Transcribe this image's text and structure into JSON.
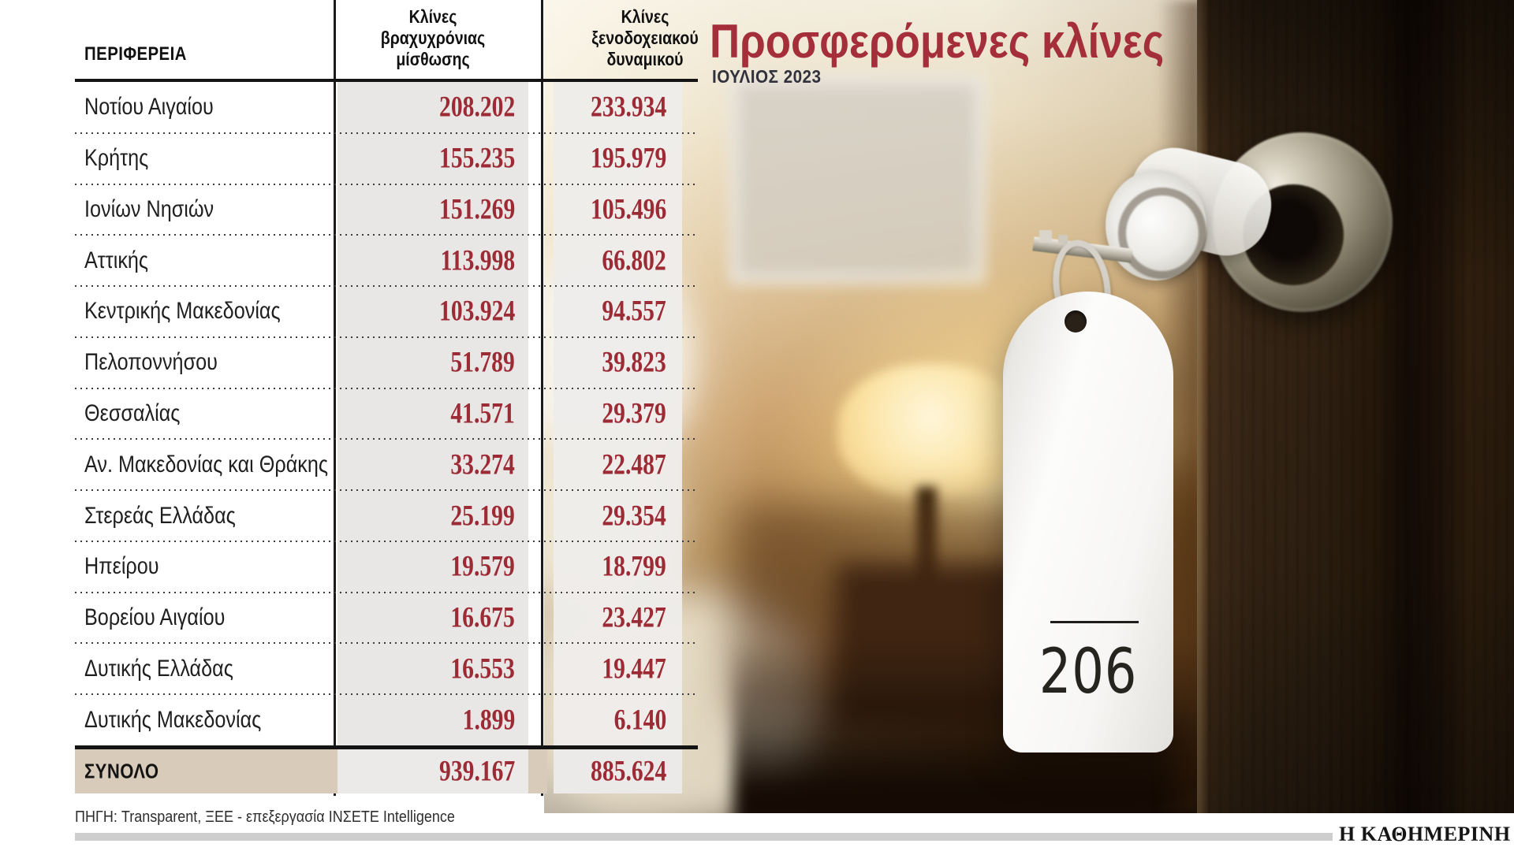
{
  "title": "Προσφερόμενες κλίνες",
  "subtitle": "ΙΟΥΛΙΟΣ 2023",
  "table": {
    "region_header": "ΠΕΡΙΦΕΡΕΙΑ",
    "col1_header": "Κλίνες\nβραχυχρόνιας\nμίσθωσης",
    "col2_header": "Κλίνες\nξενοδοχειακού\nδυναμικού",
    "rows": [
      {
        "region": "Νοτίου Αιγαίου",
        "short_term": "208.202",
        "hotel": "233.934"
      },
      {
        "region": "Κρήτης",
        "short_term": "155.235",
        "hotel": "195.979"
      },
      {
        "region": "Ιονίων Νησιών",
        "short_term": "151.269",
        "hotel": "105.496"
      },
      {
        "region": "Αττικής",
        "short_term": "113.998",
        "hotel": "66.802"
      },
      {
        "region": "Κεντρικής Μακεδονίας",
        "short_term": "103.924",
        "hotel": "94.557"
      },
      {
        "region": "Πελοποννήσου",
        "short_term": "51.789",
        "hotel": "39.823"
      },
      {
        "region": "Θεσσαλίας",
        "short_term": "41.571",
        "hotel": "29.379"
      },
      {
        "region": "Αν. Μακεδονίας και Θράκης",
        "short_term": "33.274",
        "hotel": "22.487"
      },
      {
        "region": "Στερεάς Ελλάδας",
        "short_term": "25.199",
        "hotel": "29.354"
      },
      {
        "region": "Ηπείρου",
        "short_term": "19.579",
        "hotel": "18.799"
      },
      {
        "region": "Βορείου Αιγαίου",
        "short_term": "16.675",
        "hotel": "23.427"
      },
      {
        "region": "Δυτικής Ελλάδας",
        "short_term": "16.553",
        "hotel": "19.447"
      },
      {
        "region": "Δυτικής Μακεδονίας",
        "short_term": "1.899",
        "hotel": "6.140"
      }
    ],
    "total": {
      "label": "ΣΥΝΟΛΟ",
      "short_term": "939.167",
      "hotel": "885.624"
    }
  },
  "source": "ΠΗΓΗ: Transparent, ΞΕΕ - επεξεργασία ΙΝΣΕΤΕ Intelligence",
  "branding": "Η ΚΑΘΗΜΕΡΙΝΗ",
  "photo": {
    "key_tag_number": "206"
  },
  "colors": {
    "accent_red": "#9c2b36",
    "title_red": "#a42e3a",
    "total_row_bg": "#d9cbba",
    "value_stripe_bg": "#e9e7e5",
    "brand_bar": "#cecece"
  },
  "chart_data": {
    "type": "table",
    "title": "Προσφερόμενες κλίνες",
    "subtitle": "ΙΟΥΛΙΟΣ 2023",
    "columns": [
      "ΠΕΡΙΦΕΡΕΙΑ",
      "Κλίνες βραχυχρόνιας μίσθωσης",
      "Κλίνες ξενοδοχειακού δυναμικού"
    ],
    "rows": [
      [
        "Νοτίου Αιγαίου",
        208202,
        233934
      ],
      [
        "Κρήτης",
        155235,
        195979
      ],
      [
        "Ιονίων Νησιών",
        151269,
        105496
      ],
      [
        "Αττικής",
        113998,
        66802
      ],
      [
        "Κεντρικής Μακεδονίας",
        103924,
        94557
      ],
      [
        "Πελοποννήσου",
        51789,
        39823
      ],
      [
        "Θεσσαλίας",
        41571,
        29379
      ],
      [
        "Αν. Μακεδονίας και Θράκης",
        33274,
        22487
      ],
      [
        "Στερεάς Ελλάδας",
        25199,
        29354
      ],
      [
        "Ηπείρου",
        19579,
        18799
      ],
      [
        "Βορείου Αιγαίου",
        16675,
        23427
      ],
      [
        "Δυτικής Ελλάδας",
        16553,
        19447
      ],
      [
        "Δυτικής Μακεδονίας",
        1899,
        6140
      ]
    ],
    "total": [
      "ΣΥΝΟΛΟ",
      939167,
      885624
    ],
    "source": "ΠΗΓΗ: Transparent, ΞΕΕ - επεξεργασία ΙΝΣΕΤΕ Intelligence"
  }
}
